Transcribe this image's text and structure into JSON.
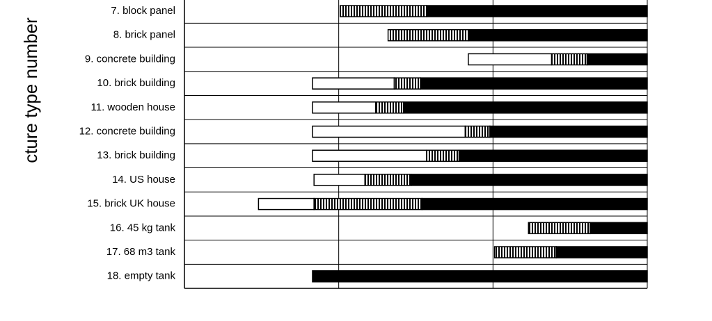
{
  "chart_data": {
    "type": "floating-stacked-bar",
    "y_axis_label": "cture type number",
    "categories": [
      "7. block panel",
      "8. brick panel",
      "9. concrete building",
      "10. brick building",
      "11. wooden house",
      "12. concrete building",
      "13. brick building",
      "14. US house",
      "15. brick UK house",
      "16. 45 kg tank",
      "17. 68 m3 tank",
      "18. empty tank"
    ],
    "starts": [
      1.01,
      1.32,
      1.84,
      0.83,
      0.83,
      0.83,
      0.83,
      0.84,
      0.48,
      2.23,
      2.01,
      0.83
    ],
    "series": [
      {
        "color": "#ffffff",
        "values": [
          0,
          0,
          0.54,
          0.53,
          0.41,
          0.99,
          0.74,
          0.33,
          0.36,
          0,
          0,
          0
        ]
      },
      {
        "color": "hatched",
        "values": [
          0.56,
          0.52,
          0.23,
          0.17,
          0.18,
          0.16,
          0.21,
          0.3,
          0.7,
          0.4,
          0.4,
          0
        ]
      },
      {
        "color": "#000000",
        "values": [
          1.43,
          1.16,
          0.39,
          1.47,
          1.58,
          1.02,
          1.22,
          1.53,
          1.46,
          0.37,
          0.59,
          2.17
        ]
      }
    ],
    "xlim": [
      0,
      3
    ],
    "xticks": [
      1,
      2
    ],
    "grid": true
  }
}
